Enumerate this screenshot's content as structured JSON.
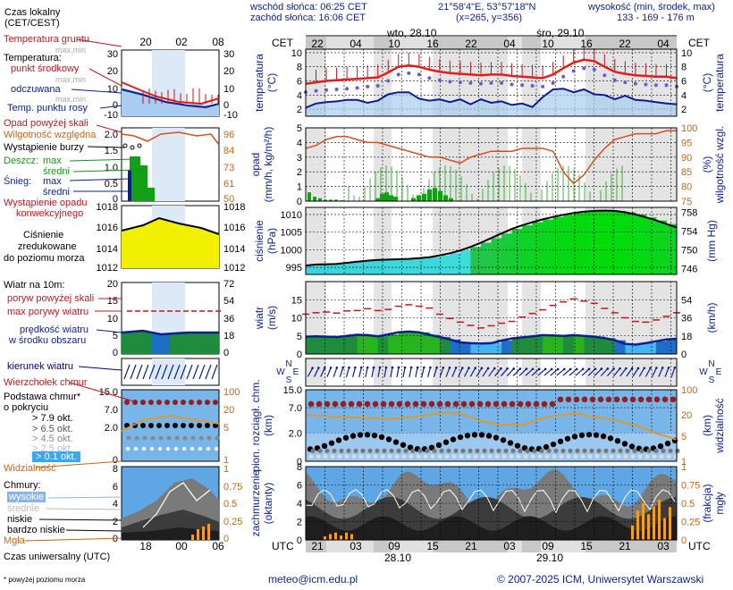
{
  "header": {
    "sunrise": "wschód słońca: 06:25 CET",
    "sunset": "zachód słońca: 16:06 CET",
    "coords": "21°58'4\"E, 53°57'18\"N",
    "grid": "(x=265, y=356)",
    "elev_title": "wysokość (min, środek, max)",
    "elev_values": "133 - 169 - 176 m"
  },
  "legend": {
    "local_time": "Czas lokalny\n(CET/CEST)",
    "local_time_1": "Czas lokalny",
    "local_time_2": "(CET/CEST)",
    "local_ticks": [
      "20",
      "02",
      "08"
    ],
    "soil_temp": "Temperatura gruntu",
    "soil_max_min": "max,min",
    "temperature": "Temperatura:",
    "center": "punkt środkowy",
    "center_max_min": "max,min",
    "apparent": "odczuwana",
    "apparent_max_min": "max,min",
    "dew_point": "Temp. punktu rosy",
    "temp_left_ticks": [
      "30",
      "20",
      "10",
      "0",
      "-10"
    ],
    "temp_right_ticks": [
      "30",
      "20",
      "10",
      "0",
      "-10"
    ],
    "precip_over": "Opad powyżej skali",
    "humidity": "Wilgotność względna",
    "storm": "Wystąpienie burzy",
    "rain": "Deszcz:",
    "rain_max": "max",
    "rain_mean": "średni",
    "snow": "Śnieg:",
    "snow_max": "max",
    "snow_mean": "średni",
    "precip_conv_1": "Wystąpienie opadu",
    "precip_conv_2": "konwekcyjnego",
    "precip_ticks": [
      "2.0",
      "1.5",
      "1.0",
      "0.5",
      "0"
    ],
    "humidity_ticks": [
      "96",
      "84",
      "73",
      "61",
      "50"
    ],
    "pressure_1": "Ciśnienie",
    "pressure_2": "zredukowane",
    "pressure_3": "do poziomu morza",
    "pressure_left_ticks": [
      "1018",
      "1016",
      "1014",
      "1012"
    ],
    "pressure_right_ticks": [
      "1018",
      "1016",
      "1014",
      "1012"
    ],
    "wind_title": "Wiatr na 10m:",
    "gust_over": "poryw powyżej skali",
    "gust_max": "max porywy wiatru",
    "wind_speed_1": "prędkość wiatru",
    "wind_speed_2": "w środku obszaru",
    "wind_left_ticks": [
      "20",
      "15",
      "10",
      "5",
      "0"
    ],
    "wind_right_ticks": [
      "72",
      "54",
      "36",
      "18",
      "0"
    ],
    "wind_dir": "kierunek wiatru",
    "cloud_top": "Wierzchołek chmur",
    "cloud_base_1": "Podstawa chmur*",
    "cloud_base_2": "o pokryciu",
    "okt_79": "> 7.9 okt.",
    "okt_65": "> 6.5 okt.",
    "okt_45": "> 4.5 okt.",
    "okt_25": "> 2.5 okt.",
    "okt_01": "> 0.1 okt.",
    "visibility": "Widzialność",
    "cloud_left_ticks": [
      "15.0",
      "7.0",
      "2.0",
      "0"
    ],
    "cloud_right_ticks": [
      "100",
      "20",
      "5",
      "1"
    ],
    "clouds": "Chmury:",
    "clouds_high": "wysokie",
    "clouds_mid": "średnie",
    "clouds_low": "niskie",
    "clouds_vlow": "bardzo niskie",
    "fog": "Mgła",
    "clouds_left_ticks": [
      "8",
      "6",
      "4",
      "2",
      "0"
    ],
    "clouds_right_ticks": [
      "1",
      "0.75",
      "0.5",
      "0.25",
      "0"
    ],
    "utc_ticks": [
      "18",
      "00",
      "06"
    ],
    "utc": "Czas uniwersalny (UTC)",
    "footnote": "* powyżej poziomu morza"
  },
  "main": {
    "cet_label": "CET",
    "utc_label": "UTC",
    "day1": "wto, 28.10",
    "day2": "śro, 29.10",
    "cet_ticks": [
      "22",
      "04",
      "10",
      "16",
      "22",
      "04",
      "10",
      "16",
      "22",
      "04"
    ],
    "utc_ticks": [
      "21",
      "03",
      "09",
      "15",
      "21",
      "03",
      "09",
      "15",
      "21",
      "03"
    ],
    "date1": "28.10",
    "date2": "29.10",
    "axis_temp": "temperatura\n(°C)",
    "axis_temp_1": "temperatura",
    "axis_temp_2": "(°C)",
    "axis_precip_1": "opad",
    "axis_precip_2": "(mm/h, kg/m²/h)",
    "axis_hum_1": "(%)",
    "axis_hum_2": "wilgotność wzgl.",
    "axis_press_1": "ciśnienie",
    "axis_press_2": "(hPa)",
    "axis_press_r": "(mm Hg)",
    "axis_wind_1": "wiatr",
    "axis_wind_2": "(m/s)",
    "axis_wind_r": "(km/h)",
    "axis_cloud_1": "pion. rozciągł. chm.",
    "axis_cloud_2": "(km)",
    "axis_vis_1": "(km)",
    "axis_vis_2": "widzialność",
    "axis_cover_1": "zachmurzenie",
    "axis_cover_2": "(oktanty)",
    "axis_frac_1": "(frakcja)",
    "axis_frac_2": "mgły",
    "temp_ticks": [
      "10",
      "8",
      "6",
      "4",
      "2"
    ],
    "precip_ticks": [
      "5",
      "4",
      "3",
      "2",
      "1",
      "0"
    ],
    "hum_ticks": [
      "100",
      "95",
      "90",
      "85",
      "80",
      "75"
    ],
    "press_ticks": [
      "1010",
      "1005",
      "1000",
      "995"
    ],
    "pressmm_ticks": [
      "758",
      "754",
      "750",
      "746"
    ],
    "wind_ticks": [
      "15",
      "10",
      "5",
      "0"
    ],
    "windkmh_ticks": [
      "54",
      "36",
      "18",
      "0"
    ],
    "dir_n": "N",
    "dir_s": "S",
    "dir_w": "W",
    "dir_e": "E",
    "cloud_ticks": [
      "15.0",
      "7.0",
      "2.0",
      "0"
    ],
    "vis_ticks": [
      "100",
      "20",
      "5",
      "1"
    ],
    "cover_ticks": [
      "8",
      "6",
      "4",
      "2",
      "0"
    ],
    "frac_ticks": [
      "1",
      "0.75",
      "0.5",
      "0.25",
      "0"
    ]
  },
  "footer": {
    "email": "meteo@icm.edu.pl",
    "copyright": "© 2007-2025 ICM, Uniwersytet Warszawski"
  },
  "chart_data": {
    "type": "line",
    "hours_utc_from_start": "",
    "temperature_center": [
      5.6,
      5.8,
      6.0,
      6.1,
      6.2,
      6.3,
      6.4,
      6.5,
      7.2,
      8.0,
      8.2,
      8.0,
      7.6,
      7.3,
      7.1,
      7.0,
      6.9,
      6.8,
      6.9,
      6.9,
      6.7,
      6.6,
      6.5,
      6.4,
      6.9,
      7.8,
      8.6,
      9.0,
      8.8,
      8.0,
      7.3,
      7.0,
      6.8,
      6.7,
      6.6,
      6.6,
      6.4
    ],
    "temperature_apparent": [
      4.4,
      4.6,
      4.7,
      4.8,
      4.9,
      5.0,
      5.2,
      5.3,
      6.0,
      6.9,
      7.1,
      6.9,
      6.4,
      6.1,
      5.9,
      5.8,
      5.7,
      5.6,
      5.7,
      5.7,
      5.5,
      5.4,
      5.3,
      5.2,
      5.7,
      6.6,
      7.4,
      7.8,
      7.6,
      6.8,
      6.1,
      5.8,
      5.6,
      5.5,
      5.4,
      5.4,
      5.2
    ],
    "dew_point": [
      2.2,
      2.8,
      3.0,
      3.1,
      3.3,
      3.3,
      2.9,
      3.2,
      4.1,
      4.4,
      4.4,
      3.5,
      3.2,
      3.4,
      3.0,
      3.4,
      2.7,
      3.4,
      2.9,
      3.1,
      2.6,
      2.8,
      2.3,
      3.7,
      4.8,
      4.9,
      4.4,
      4.8,
      4.1,
      4.0,
      3.4,
      3.9,
      3.3,
      3.2,
      3.0,
      2.8,
      2.7
    ],
    "humidity": [
      93,
      94,
      96,
      97,
      97,
      96,
      95,
      95,
      94,
      93,
      92,
      91,
      90,
      90,
      89,
      88,
      90,
      91,
      92,
      92,
      92,
      93,
      93,
      93,
      92,
      85,
      81,
      84,
      89,
      93,
      96,
      97,
      98,
      98,
      98,
      99,
      99
    ],
    "pressure": [
      995.5,
      995.8,
      995.9,
      996.0,
      996.3,
      996.6,
      996.9,
      997.1,
      997.2,
      997.3,
      997.4,
      997.6,
      997.9,
      998.4,
      999.0,
      999.8,
      1000.8,
      1002.0,
      1003.3,
      1004.6,
      1005.9,
      1006.9,
      1007.8,
      1008.6,
      1009.3,
      1009.9,
      1010.4,
      1010.8,
      1011.0,
      1011.1,
      1011.0,
      1010.6,
      1010.0,
      1009.2,
      1008.3,
      1007.3,
      1006.3
    ],
    "wind": [
      4.8,
      4.9,
      4.8,
      4.7,
      5.0,
      5.3,
      5.2,
      4.9,
      5.4,
      6.0,
      6.2,
      6.0,
      5.3,
      4.7,
      4.0,
      3.2,
      3.0,
      2.9,
      3.0,
      3.7,
      4.3,
      4.6,
      4.9,
      5.2,
      5.1,
      5.0,
      5.2,
      5.0,
      4.8,
      4.4,
      3.8,
      2.8,
      2.6,
      3.0,
      3.5,
      4.0,
      4.2
    ],
    "gust": [
      11.0,
      11.4,
      11.6,
      11.3,
      11.9,
      12.0,
      12.5,
      12.0,
      12.3,
      13.2,
      13.6,
      13.2,
      12.7,
      11.0,
      9.8,
      8.8,
      7.9,
      7.2,
      7.8,
      8.5,
      9.0,
      10.2,
      11.2,
      12.2,
      13.4,
      14.4,
      15.2,
      14.6,
      14.0,
      12.6,
      11.4,
      10.0,
      9.0,
      8.8,
      9.4,
      10.4,
      11.4
    ],
    "visibility_km": [
      20,
      19,
      18,
      17,
      17,
      17,
      16,
      16,
      15,
      16,
      17,
      18,
      20,
      22,
      23,
      22,
      17,
      13,
      12,
      10,
      11,
      10,
      13,
      16,
      18,
      20,
      22,
      20,
      17,
      16,
      14,
      12,
      10,
      8,
      6,
      5,
      4
    ]
  }
}
